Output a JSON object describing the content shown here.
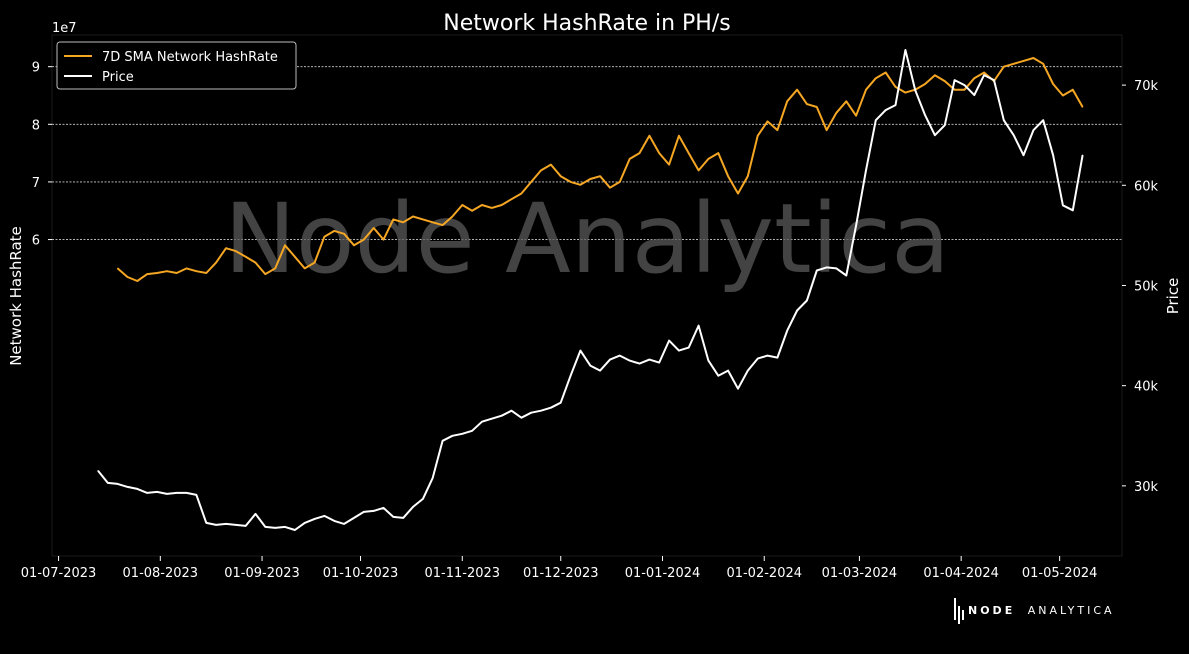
{
  "chart_data": {
    "type": "line",
    "title": "Network HashRate in PH/s",
    "ylabel": "Network HashRate",
    "y2label": "Price",
    "y_offset_text": "1e7",
    "x_tick_labels": [
      "01-07-2023",
      "01-08-2023",
      "01-09-2023",
      "01-10-2023",
      "01-11-2023",
      "01-12-2023",
      "01-01-2024",
      "01-02-2024",
      "01-03-2024",
      "01-04-2024",
      "01-05-2024"
    ],
    "y_ticks": [
      6,
      7,
      8,
      9
    ],
    "y_tick_labels": [
      "6",
      "7",
      "8",
      "9"
    ],
    "y2_ticks": [
      30000,
      40000,
      50000,
      60000,
      70000
    ],
    "y2_tick_labels": [
      "30k",
      "40k",
      "50k",
      "60k",
      "70k"
    ],
    "xlim": [
      "2023-06-29",
      "2024-05-20"
    ],
    "ylim": [
      5.08,
      95.5
    ],
    "y2lim": [
      23000,
      75000
    ],
    "grid": "horizontal dashed at left-axis ticks",
    "legend_position": "top-left",
    "series": [
      {
        "name": "7D SMA Network HashRate",
        "axis": "left",
        "color": "#f5a623",
        "x": [
          "2023-07-19",
          "2023-07-22",
          "2023-07-25",
          "2023-07-28",
          "2023-07-31",
          "2023-08-03",
          "2023-08-06",
          "2023-08-09",
          "2023-08-12",
          "2023-08-15",
          "2023-08-18",
          "2023-08-21",
          "2023-08-24",
          "2023-08-27",
          "2023-08-30",
          "2023-09-02",
          "2023-09-05",
          "2023-09-08",
          "2023-09-11",
          "2023-09-14",
          "2023-09-17",
          "2023-09-20",
          "2023-09-23",
          "2023-09-26",
          "2023-09-29",
          "2023-10-02",
          "2023-10-05",
          "2023-10-08",
          "2023-10-11",
          "2023-10-14",
          "2023-10-17",
          "2023-10-20",
          "2023-10-23",
          "2023-10-26",
          "2023-10-29",
          "2023-11-01",
          "2023-11-04",
          "2023-11-07",
          "2023-11-10",
          "2023-11-13",
          "2023-11-16",
          "2023-11-19",
          "2023-11-22",
          "2023-11-25",
          "2023-11-28",
          "2023-12-01",
          "2023-12-04",
          "2023-12-07",
          "2023-12-10",
          "2023-12-13",
          "2023-12-16",
          "2023-12-19",
          "2023-12-22",
          "2023-12-25",
          "2023-12-28",
          "2023-12-31",
          "2024-01-03",
          "2024-01-06",
          "2024-01-09",
          "2024-01-12",
          "2024-01-15",
          "2024-01-18",
          "2024-01-21",
          "2024-01-24",
          "2024-01-27",
          "2024-01-30",
          "2024-02-02",
          "2024-02-05",
          "2024-02-08",
          "2024-02-11",
          "2024-02-14",
          "2024-02-17",
          "2024-02-20",
          "2024-02-23",
          "2024-02-26",
          "2024-02-29",
          "2024-03-03",
          "2024-03-06",
          "2024-03-09",
          "2024-03-12",
          "2024-03-15",
          "2024-03-18",
          "2024-03-21",
          "2024-03-24",
          "2024-03-27",
          "2024-03-30",
          "2024-04-02",
          "2024-04-05",
          "2024-04-08",
          "2024-04-11",
          "2024-04-14",
          "2024-04-17",
          "2024-04-20",
          "2024-04-23",
          "2024-04-26",
          "2024-04-29",
          "2024-05-02",
          "2024-05-05",
          "2024-05-08"
        ],
        "y": [
          5.5,
          5.35,
          5.28,
          5.4,
          5.42,
          5.45,
          5.42,
          5.5,
          5.45,
          5.42,
          5.6,
          5.85,
          5.8,
          5.7,
          5.6,
          5.4,
          5.5,
          5.9,
          5.7,
          5.5,
          5.6,
          6.05,
          6.15,
          6.1,
          5.9,
          6.0,
          6.2,
          6.0,
          6.35,
          6.3,
          6.4,
          6.35,
          6.3,
          6.25,
          6.4,
          6.6,
          6.5,
          6.6,
          6.55,
          6.6,
          6.7,
          6.8,
          7.0,
          7.2,
          7.3,
          7.1,
          7.0,
          6.95,
          7.05,
          7.1,
          6.9,
          7.0,
          7.4,
          7.5,
          7.8,
          7.5,
          7.3,
          7.8,
          7.5,
          7.2,
          7.4,
          7.5,
          7.1,
          6.8,
          7.1,
          7.8,
          8.05,
          7.9,
          8.4,
          8.6,
          8.35,
          8.3,
          7.9,
          8.2,
          8.4,
          8.15,
          8.6,
          8.8,
          8.9,
          8.65,
          8.55,
          8.6,
          8.7,
          8.85,
          8.75,
          8.6,
          8.6,
          8.8,
          8.9,
          8.75,
          9.0,
          9.05,
          9.1,
          9.15,
          9.05,
          8.7,
          8.5,
          8.6,
          8.3
        ]
      },
      {
        "name": "Price",
        "axis": "right",
        "color": "#ffffff",
        "x": [
          "2023-07-13",
          "2023-07-16",
          "2023-07-19",
          "2023-07-22",
          "2023-07-25",
          "2023-07-28",
          "2023-07-31",
          "2023-08-03",
          "2023-08-06",
          "2023-08-09",
          "2023-08-12",
          "2023-08-15",
          "2023-08-18",
          "2023-08-21",
          "2023-08-24",
          "2023-08-27",
          "2023-08-30",
          "2023-09-02",
          "2023-09-05",
          "2023-09-08",
          "2023-09-11",
          "2023-09-14",
          "2023-09-17",
          "2023-09-20",
          "2023-09-23",
          "2023-09-26",
          "2023-09-29",
          "2023-10-02",
          "2023-10-05",
          "2023-10-08",
          "2023-10-11",
          "2023-10-14",
          "2023-10-17",
          "2023-10-20",
          "2023-10-23",
          "2023-10-26",
          "2023-10-29",
          "2023-11-01",
          "2023-11-04",
          "2023-11-07",
          "2023-11-10",
          "2023-11-13",
          "2023-11-16",
          "2023-11-19",
          "2023-11-22",
          "2023-11-25",
          "2023-11-28",
          "2023-12-01",
          "2023-12-04",
          "2023-12-07",
          "2023-12-10",
          "2023-12-13",
          "2023-12-16",
          "2023-12-19",
          "2023-12-22",
          "2023-12-25",
          "2023-12-28",
          "2023-12-31",
          "2024-01-03",
          "2024-01-06",
          "2024-01-09",
          "2024-01-12",
          "2024-01-15",
          "2024-01-18",
          "2024-01-21",
          "2024-01-24",
          "2024-01-27",
          "2024-01-30",
          "2024-02-02",
          "2024-02-05",
          "2024-02-08",
          "2024-02-11",
          "2024-02-14",
          "2024-02-17",
          "2024-02-20",
          "2024-02-23",
          "2024-02-26",
          "2024-02-29",
          "2024-03-03",
          "2024-03-06",
          "2024-03-09",
          "2024-03-12",
          "2024-03-15",
          "2024-03-18",
          "2024-03-21",
          "2024-03-24",
          "2024-03-27",
          "2024-03-30",
          "2024-04-02",
          "2024-04-05",
          "2024-04-08",
          "2024-04-11",
          "2024-04-14",
          "2024-04-17",
          "2024-04-20",
          "2024-04-23",
          "2024-04-26",
          "2024-04-29",
          "2024-05-02",
          "2024-05-05",
          "2024-05-08"
        ],
        "y": [
          31500,
          30300,
          30200,
          29900,
          29700,
          29300,
          29400,
          29200,
          29300,
          29300,
          29100,
          26300,
          26100,
          26200,
          26100,
          26000,
          27200,
          25900,
          25800,
          25900,
          25600,
          26300,
          26700,
          27000,
          26500,
          26200,
          26800,
          27400,
          27500,
          27800,
          26900,
          26800,
          27900,
          28700,
          30800,
          34500,
          35000,
          35200,
          35500,
          36400,
          36700,
          37000,
          37500,
          36800,
          37300,
          37500,
          37800,
          38300,
          41000,
          43500,
          42000,
          41500,
          42600,
          43000,
          42500,
          42200,
          42600,
          42300,
          44500,
          43500,
          43800,
          46000,
          42500,
          41000,
          41500,
          39700,
          41500,
          42700,
          43000,
          42800,
          45500,
          47500,
          48500,
          51500,
          51800,
          51700,
          51000,
          56000,
          61500,
          66500,
          67500,
          68000,
          73500,
          69500,
          67000,
          65000,
          66000,
          70500,
          70000,
          69000,
          71000,
          70500,
          66500,
          65000,
          63000,
          65500,
          66500,
          63000,
          58000,
          57500,
          63000
        ]
      }
    ]
  },
  "legend": {
    "series_1": "7D SMA Network HashRate",
    "series_2": "Price"
  },
  "watermark": "Node Analytica",
  "brand": {
    "name_bold": "NODE",
    "name_light": "ANALYTICA"
  },
  "colors": {
    "background": "#000000",
    "hashrate_line": "#f5a623",
    "price_line": "#ffffff",
    "grid": "#cccccc"
  }
}
